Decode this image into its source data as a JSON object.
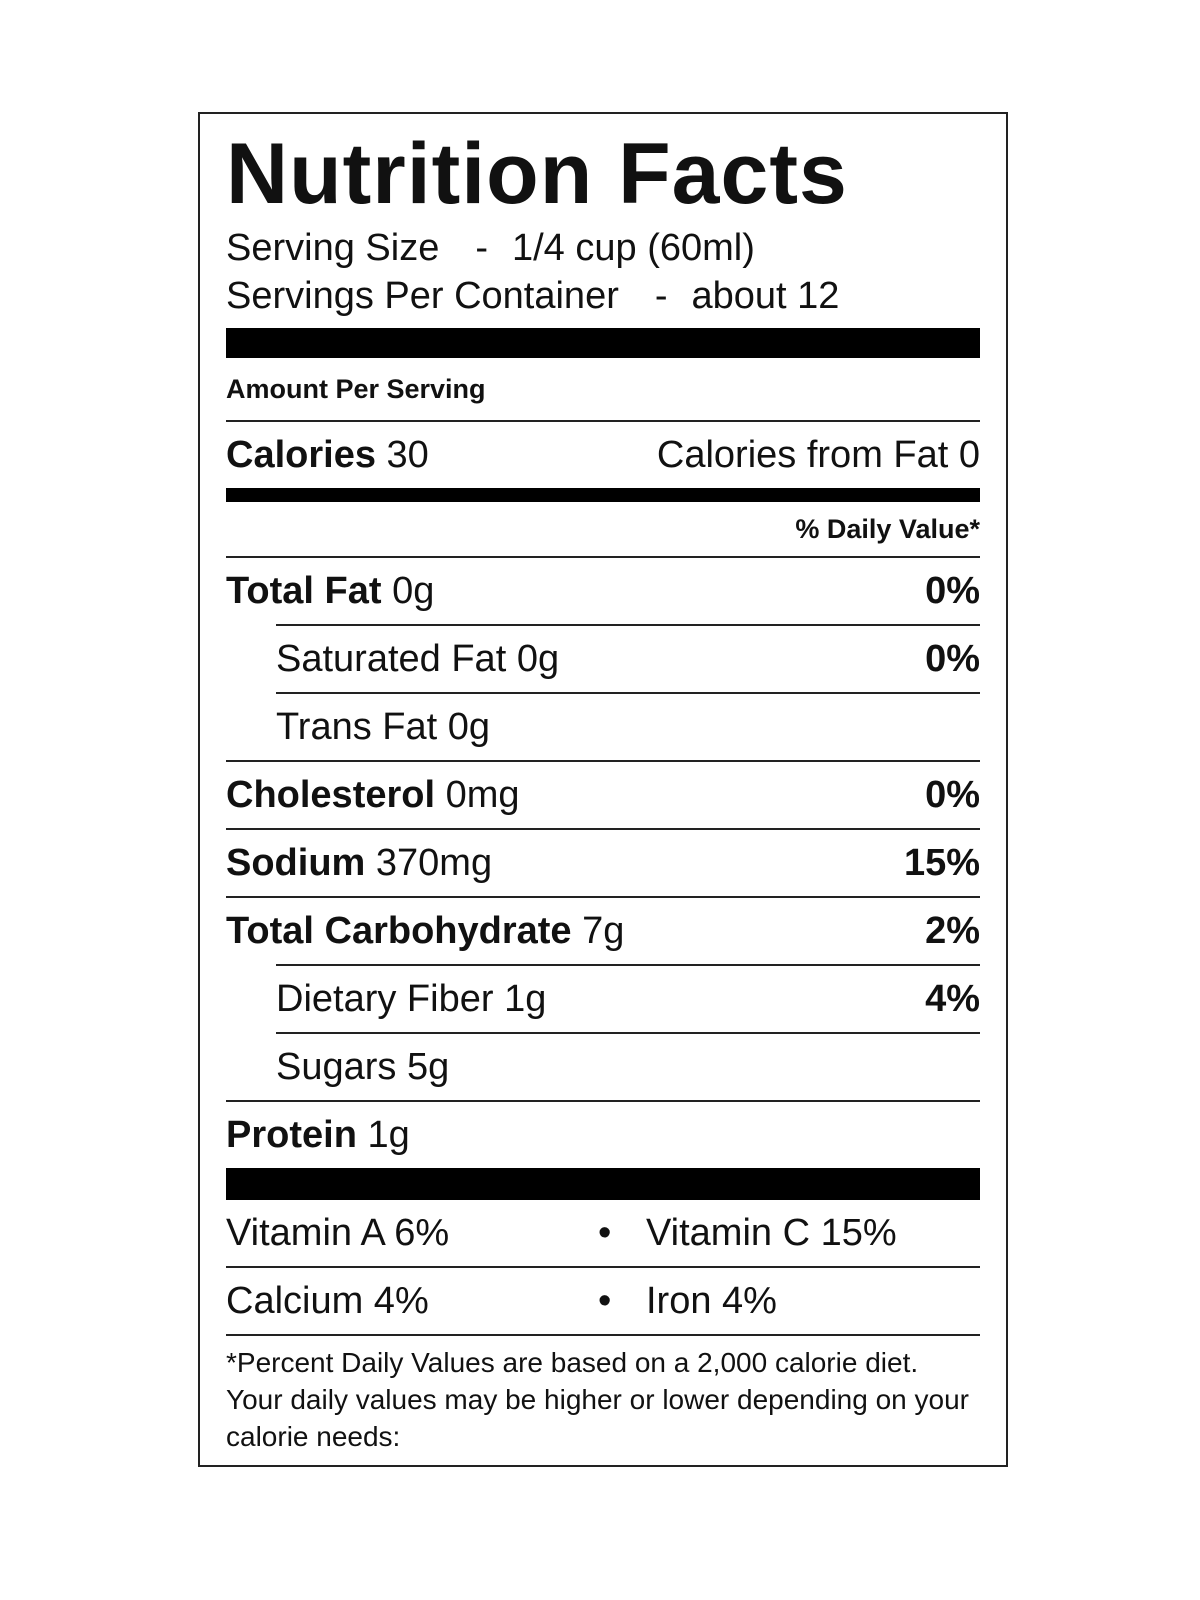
{
  "title": "Nutrition Facts",
  "serving": [
    {
      "label": "Serving Size",
      "separator": "-",
      "value": "1/4 cup (60ml)"
    },
    {
      "label": "Servings Per Container",
      "separator": "-",
      "value": "about 12"
    }
  ],
  "amount_header": "Amount Per Serving",
  "calories": {
    "label": "Calories",
    "value": "30",
    "from_fat": "Calories from Fat 0"
  },
  "daily_value_header": "% Daily Value*",
  "nutrients": [
    {
      "name": "Total Fat",
      "amount": "0g",
      "dv": "0%",
      "indent": false
    },
    {
      "name": "Saturated Fat",
      "amount": "0g",
      "dv": "0%",
      "indent": true
    },
    {
      "name": "Trans Fat",
      "amount": "0g",
      "dv": null,
      "indent": true
    },
    {
      "name": "Cholesterol",
      "amount": "0mg",
      "dv": "0%",
      "indent": false
    },
    {
      "name": "Sodium",
      "amount": "370mg",
      "dv": "15%",
      "indent": false
    },
    {
      "name": "Total Carbohydrate",
      "amount": "7g",
      "dv": "2%",
      "indent": false
    },
    {
      "name": "Dietary Fiber",
      "amount": "1g",
      "dv": "4%",
      "indent": true
    },
    {
      "name": "Sugars",
      "amount": "5g",
      "dv": null,
      "indent": true
    },
    {
      "name": "Protein",
      "amount": "1g",
      "dv": null,
      "indent": false
    }
  ],
  "vitamins": [
    {
      "left": "Vitamin A 6%",
      "separator": "•",
      "right": "Vitamin C 15%"
    },
    {
      "left": "Calcium 4%",
      "separator": "•",
      "right": "Iron 4%"
    }
  ],
  "footnote": "*Percent Daily Values are based on a 2,000 calorie diet. Your daily values may be higher or lower depending on your calorie needs:"
}
